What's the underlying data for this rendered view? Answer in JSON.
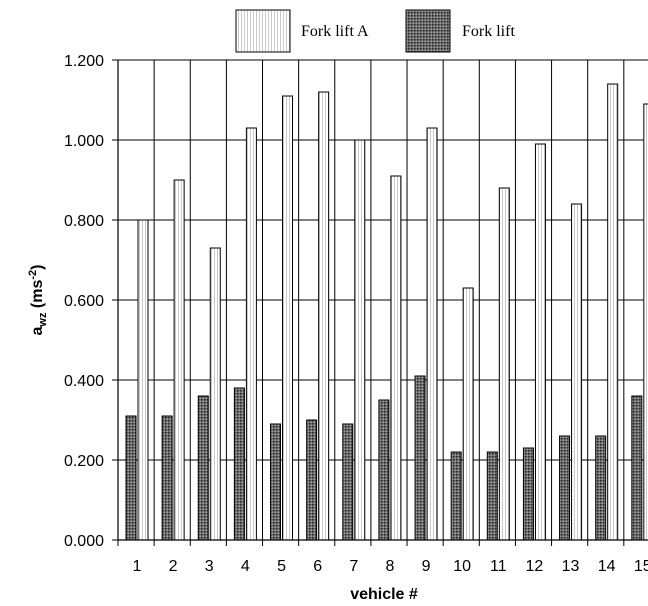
{
  "chart_data": {
    "type": "bar",
    "title": "",
    "xlabel": "vehicle #",
    "ylabel_main": "a",
    "ylabel_sub": "wz",
    "ylabel_unit_pre": " (ms",
    "ylabel_unit_sup": "-2",
    "ylabel_unit_post": ")",
    "ylim": [
      0,
      1.2
    ],
    "yticks": [
      "0.000",
      "0.200",
      "0.400",
      "0.600",
      "0.800",
      "1.000",
      "1.200"
    ],
    "ytick_values": [
      0,
      0.2,
      0.4,
      0.6,
      0.8,
      1.0,
      1.2
    ],
    "categories": [
      "1",
      "2",
      "3",
      "4",
      "5",
      "6",
      "7",
      "8",
      "9",
      "10",
      "11",
      "12",
      "13",
      "14",
      "15"
    ],
    "grid": true,
    "legend_position": "top",
    "series": [
      {
        "name": "Fork lift",
        "pattern": "dark-dotted",
        "values": [
          0.31,
          0.31,
          0.36,
          0.38,
          0.29,
          0.3,
          0.29,
          0.35,
          0.41,
          0.22,
          0.22,
          0.23,
          0.26,
          0.26,
          0.36
        ]
      },
      {
        "name": "Fork lift A",
        "pattern": "light-vertical-stripes",
        "values": [
          0.8,
          0.9,
          0.73,
          1.03,
          1.11,
          1.12,
          1.0,
          0.91,
          1.03,
          0.63,
          0.88,
          0.99,
          0.84,
          1.14,
          1.09
        ]
      }
    ],
    "legend": [
      "Fork lift A",
      "Fork lift"
    ]
  }
}
